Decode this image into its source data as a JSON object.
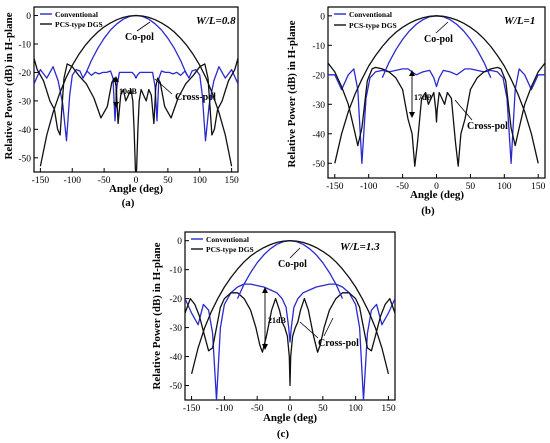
{
  "chart_data": [
    {
      "type": "line",
      "panel_label": "(a)",
      "ratio_label": "W/L=0.8",
      "xlabel": "Angle (deg)",
      "ylabel": "Relative Power (dB) in H-plane",
      "xlim": [
        -160,
        160
      ],
      "ylim": [
        -55,
        3
      ],
      "xticks": [
        -150,
        -100,
        -50,
        0,
        50,
        100,
        150
      ],
      "yticks": [
        0,
        -10,
        -20,
        -30,
        -40,
        -50
      ],
      "annotations": {
        "co": "Co-pol",
        "cross": "Cross-pol",
        "gap": "10dB"
      },
      "series": [
        {
          "name": "Conventional",
          "color": "#2a2ad0",
          "width": 1.3,
          "x": [
            -160,
            -150,
            -140,
            -130,
            -122,
            -115,
            -109,
            -104,
            -100,
            -94,
            -88,
            -83,
            -77,
            -70,
            -64,
            -58,
            -52,
            -46,
            -40,
            -36,
            -33,
            -30,
            -26,
            -20,
            -12,
            -6,
            -2,
            0,
            2,
            6,
            12,
            20,
            26,
            30,
            33,
            36,
            40,
            46,
            52,
            58,
            64,
            70,
            77,
            83,
            88,
            94,
            100,
            104,
            109,
            115,
            122,
            130,
            140,
            150,
            160
          ],
          "y": [
            -24,
            -19,
            -22,
            -18,
            -23,
            -31,
            -44,
            -28,
            -21,
            -19,
            -19.5,
            -22,
            -19.5,
            -21,
            -20,
            -20.5,
            -20,
            -20,
            -19.5,
            -22,
            -37,
            -25,
            -20,
            -20,
            -20,
            -20,
            -21,
            -22,
            -21,
            -20,
            -20,
            -20,
            -20,
            -25,
            -37,
            -22,
            -19.5,
            -20,
            -20,
            -20.5,
            -20,
            -21,
            -19.5,
            -22,
            -19.5,
            -19,
            -21,
            -28,
            -44,
            -31,
            -23,
            -18,
            -22,
            -19,
            -24
          ]
        },
        {
          "name": "PCS-type DGS",
          "color": "#111111",
          "width": 1.3,
          "x": [
            -160,
            -155,
            -145,
            -135,
            -128,
            -123,
            -119,
            -116,
            -113,
            -108,
            -100,
            -90,
            -78,
            -66,
            -55,
            -45,
            -38,
            -34,
            -31,
            -28,
            -24,
            -20,
            -16,
            -12,
            -8,
            -5,
            -3,
            -1,
            0,
            1,
            3,
            5,
            8,
            12,
            16,
            20,
            24,
            28,
            31,
            34,
            38,
            45,
            55,
            66,
            78,
            90,
            100,
            108,
            113,
            116,
            119,
            123,
            128,
            135,
            145,
            155,
            160
          ],
          "y": [
            -15,
            -19,
            -23,
            -30,
            -33,
            -40,
            -42,
            -32,
            -22,
            -17,
            -18,
            -21,
            -24,
            -29,
            -36,
            -32,
            -23.5,
            -22,
            -25,
            -38,
            -28,
            -26,
            -30,
            -28,
            -26,
            -30,
            -40,
            -54,
            -57,
            -54,
            -40,
            -30,
            -26,
            -28,
            -30,
            -26,
            -28,
            -38,
            -25,
            -22,
            -23.5,
            -32,
            -36,
            -29,
            -24,
            -21,
            -18,
            -17,
            -22,
            -32,
            -42,
            -40,
            -33,
            -30,
            -23,
            -19,
            -15
          ]
        },
        {
          "name": "Co-pol Conventional",
          "color": "#2a2ad0",
          "width": 1.3,
          "x": [
            -80,
            -70,
            -60,
            -50,
            -40,
            -30,
            -20,
            -10,
            0,
            10,
            20,
            30,
            40,
            50,
            60,
            70,
            80
          ],
          "y": [
            -21,
            -15.8,
            -11.5,
            -8,
            -5.1,
            -2.9,
            -1.3,
            -0.3,
            0,
            -0.3,
            -1.3,
            -2.9,
            -5.1,
            -8,
            -11.5,
            -15.8,
            -21
          ]
        },
        {
          "name": "Co-pol PCS-type DGS",
          "color": "#111111",
          "width": 1.3,
          "x": [
            -150,
            -140,
            -130,
            -120,
            -110,
            -100,
            -90,
            -80,
            -70,
            -60,
            -50,
            -40,
            -30,
            -20,
            -10,
            0,
            10,
            20,
            30,
            40,
            50,
            60,
            70,
            80,
            90,
            100,
            110,
            120,
            130,
            140,
            150
          ],
          "y": [
            -53,
            -42,
            -34,
            -27.5,
            -22,
            -17.5,
            -13.8,
            -10.6,
            -8,
            -5.8,
            -4,
            -2.6,
            -1.45,
            -0.65,
            -0.15,
            0,
            -0.15,
            -0.65,
            -1.45,
            -2.6,
            -4,
            -5.8,
            -8,
            -10.6,
            -13.8,
            -17.5,
            -22,
            -27.5,
            -34,
            -42,
            -53
          ]
        }
      ]
    },
    {
      "type": "line",
      "panel_label": "(b)",
      "ratio_label": "W/L=1",
      "xlabel": "Angle (deg)",
      "ylabel": "Relative Power (dB) in H-plane",
      "xlim": [
        -160,
        160
      ],
      "ylim": [
        -55,
        3
      ],
      "xticks": [
        -150,
        -100,
        -50,
        0,
        50,
        100,
        150
      ],
      "yticks": [
        0,
        -10,
        -20,
        -30,
        -40,
        -50
      ],
      "annotations": {
        "co": "Co-pol",
        "cross": "Cross-pol",
        "gap": "17dB"
      },
      "series": [
        {
          "name": "Conventional",
          "color": "#2a2ad0",
          "width": 1.3,
          "x": [
            -160,
            -150,
            -140,
            -130,
            -122,
            -116,
            -110,
            -104,
            -98,
            -90,
            -80,
            -70,
            -60,
            -50,
            -42,
            -36,
            -30,
            -20,
            -10,
            -4,
            0,
            4,
            10,
            20,
            30,
            36,
            42,
            50,
            60,
            70,
            80,
            90,
            98,
            104,
            110,
            116,
            122,
            130,
            140,
            150,
            160
          ],
          "y": [
            -20,
            -20,
            -25,
            -20,
            -18,
            -25,
            -50,
            -28,
            -21,
            -19,
            -18.5,
            -19,
            -18.5,
            -18,
            -18,
            -19,
            -20,
            -19,
            -18.5,
            -21,
            -24,
            -21,
            -18.5,
            -19,
            -20,
            -19,
            -18,
            -18,
            -18.5,
            -19,
            -18.5,
            -19,
            -21,
            -28,
            -50,
            -25,
            -18,
            -20,
            -25,
            -20,
            -20
          ]
        },
        {
          "name": "PCS-type DGS",
          "color": "#111111",
          "width": 1.3,
          "x": [
            -160,
            -150,
            -140,
            -130,
            -122,
            -116,
            -110,
            -102,
            -95,
            -90,
            -80,
            -70,
            -60,
            -50,
            -42,
            -36,
            -32,
            -28,
            -22,
            -16,
            -12,
            -8,
            -4,
            -1,
            0,
            1,
            4,
            8,
            12,
            16,
            22,
            28,
            32,
            36,
            42,
            50,
            60,
            70,
            80,
            90,
            95,
            102,
            110,
            116,
            122,
            130,
            140,
            150,
            160
          ],
          "y": [
            -16,
            -19,
            -24,
            -30,
            -38,
            -44,
            -38,
            -22,
            -18,
            -17.5,
            -18,
            -19,
            -21,
            -25,
            -35,
            -40,
            -51,
            -43,
            -28,
            -26,
            -30,
            -28,
            -26,
            -32,
            -36,
            -32,
            -26,
            -28,
            -30,
            -26,
            -28,
            -43,
            -51,
            -40,
            -35,
            -25,
            -21,
            -19,
            -18,
            -17.5,
            -18,
            -22,
            -38,
            -44,
            -38,
            -30,
            -24,
            -19,
            -16
          ]
        },
        {
          "name": "Co-pol Conventional",
          "color": "#2a2ad0",
          "width": 1.3,
          "x": [
            -80,
            -70,
            -60,
            -50,
            -40,
            -30,
            -20,
            -10,
            0,
            10,
            20,
            30,
            40,
            50,
            60,
            70,
            80
          ],
          "y": [
            -21,
            -15.8,
            -11.5,
            -8,
            -5.1,
            -2.9,
            -1.3,
            -0.3,
            0,
            -0.3,
            -1.3,
            -2.9,
            -5.1,
            -8,
            -11.5,
            -15.8,
            -21
          ]
        },
        {
          "name": "Co-pol PCS-type DGS",
          "color": "#111111",
          "width": 1.3,
          "x": [
            -150,
            -140,
            -130,
            -120,
            -110,
            -100,
            -90,
            -80,
            -70,
            -60,
            -50,
            -40,
            -30,
            -20,
            -10,
            0,
            10,
            20,
            30,
            40,
            50,
            60,
            70,
            80,
            90,
            100,
            110,
            120,
            130,
            140,
            150
          ],
          "y": [
            -50,
            -40,
            -32.5,
            -26.5,
            -21.5,
            -17,
            -13.5,
            -10.4,
            -7.8,
            -5.6,
            -3.9,
            -2.5,
            -1.4,
            -0.62,
            -0.15,
            0,
            -0.15,
            -0.62,
            -1.4,
            -2.5,
            -3.9,
            -5.6,
            -7.8,
            -10.4,
            -13.5,
            -17,
            -21.5,
            -26.5,
            -32.5,
            -40,
            -50
          ]
        }
      ]
    },
    {
      "type": "line",
      "panel_label": "(c)",
      "ratio_label": "W/L=1.3",
      "xlabel": "Angle (deg)",
      "ylabel": "Relative Power (dB) in H-plane",
      "xlim": [
        -160,
        160
      ],
      "ylim": [
        -55,
        3
      ],
      "xticks": [
        -150,
        -100,
        -50,
        0,
        50,
        100,
        150
      ],
      "yticks": [
        0,
        -10,
        -20,
        -30,
        -40,
        -50
      ],
      "annotations": {
        "co": "Co-pol",
        "cross": "Cross-pol",
        "gap": "21dB"
      },
      "series": [
        {
          "name": "Conventional",
          "color": "#2a2ad0",
          "width": 1.3,
          "x": [
            -160,
            -150,
            -140,
            -132,
            -124,
            -118,
            -112,
            -106,
            -100,
            -90,
            -80,
            -70,
            -60,
            -50,
            -40,
            -30,
            -20,
            -12,
            -6,
            -2,
            0,
            2,
            6,
            12,
            20,
            30,
            40,
            50,
            60,
            70,
            80,
            90,
            100,
            106,
            112,
            118,
            124,
            132,
            140,
            150,
            160
          ],
          "y": [
            -20,
            -25,
            -29,
            -22,
            -24,
            -32,
            -55,
            -30,
            -22,
            -18,
            -16,
            -15,
            -15,
            -15.5,
            -16,
            -17,
            -18,
            -20,
            -23,
            -30,
            -35,
            -30,
            -23,
            -20,
            -18,
            -17,
            -16,
            -15.5,
            -15,
            -15,
            -16,
            -18,
            -22,
            -30,
            -55,
            -32,
            -24,
            -22,
            -29,
            -25,
            -20
          ]
        },
        {
          "name": "PCS-type DGS",
          "color": "#111111",
          "width": 1.3,
          "x": [
            -160,
            -152,
            -145,
            -138,
            -130,
            -124,
            -118,
            -112,
            -106,
            -100,
            -90,
            -80,
            -70,
            -60,
            -52,
            -46,
            -42,
            -36,
            -28,
            -22,
            -16,
            -12,
            -8,
            -4,
            -1,
            0,
            1,
            4,
            8,
            12,
            16,
            22,
            28,
            36,
            42,
            46,
            52,
            60,
            70,
            80,
            90,
            100,
            106,
            112,
            118,
            124,
            130,
            138,
            145,
            152,
            160
          ],
          "y": [
            -25,
            -20,
            -22,
            -26,
            -33,
            -38,
            -37,
            -30,
            -23,
            -20,
            -18,
            -18,
            -20,
            -24,
            -30,
            -36,
            -38.5,
            -33,
            -24,
            -20,
            -24,
            -28,
            -30,
            -33,
            -40,
            -50,
            -40,
            -33,
            -30,
            -28,
            -24,
            -20,
            -24,
            -33,
            -38.5,
            -36,
            -30,
            -24,
            -20,
            -18,
            -18,
            -20,
            -23,
            -30,
            -37,
            -38,
            -33,
            -26,
            -22,
            -20,
            -25
          ]
        },
        {
          "name": "Co-pol Conventional",
          "color": "#2a2ad0",
          "width": 1.3,
          "x": [
            -80,
            -70,
            -60,
            -50,
            -40,
            -30,
            -20,
            -10,
            0,
            10,
            20,
            30,
            40,
            50,
            60,
            70,
            80
          ],
          "y": [
            -20,
            -15,
            -11,
            -7.6,
            -4.9,
            -2.8,
            -1.25,
            -0.3,
            0,
            -0.3,
            -1.25,
            -2.8,
            -4.9,
            -7.6,
            -11,
            -15,
            -20
          ]
        },
        {
          "name": "Co-pol PCS-type DGS",
          "color": "#111111",
          "width": 1.3,
          "x": [
            -150,
            -140,
            -130,
            -120,
            -110,
            -100,
            -90,
            -80,
            -70,
            -60,
            -50,
            -40,
            -30,
            -20,
            -10,
            0,
            10,
            20,
            30,
            40,
            50,
            60,
            70,
            80,
            90,
            100,
            110,
            120,
            130,
            140,
            150
          ],
          "y": [
            -46,
            -37,
            -30,
            -24.5,
            -20,
            -16,
            -12.7,
            -9.8,
            -7.3,
            -5.3,
            -3.7,
            -2.4,
            -1.35,
            -0.6,
            -0.15,
            0,
            -0.15,
            -0.6,
            -1.35,
            -2.4,
            -3.7,
            -5.3,
            -7.3,
            -9.8,
            -12.7,
            -16,
            -20,
            -24.5,
            -30,
            -37,
            -46
          ]
        }
      ]
    }
  ]
}
